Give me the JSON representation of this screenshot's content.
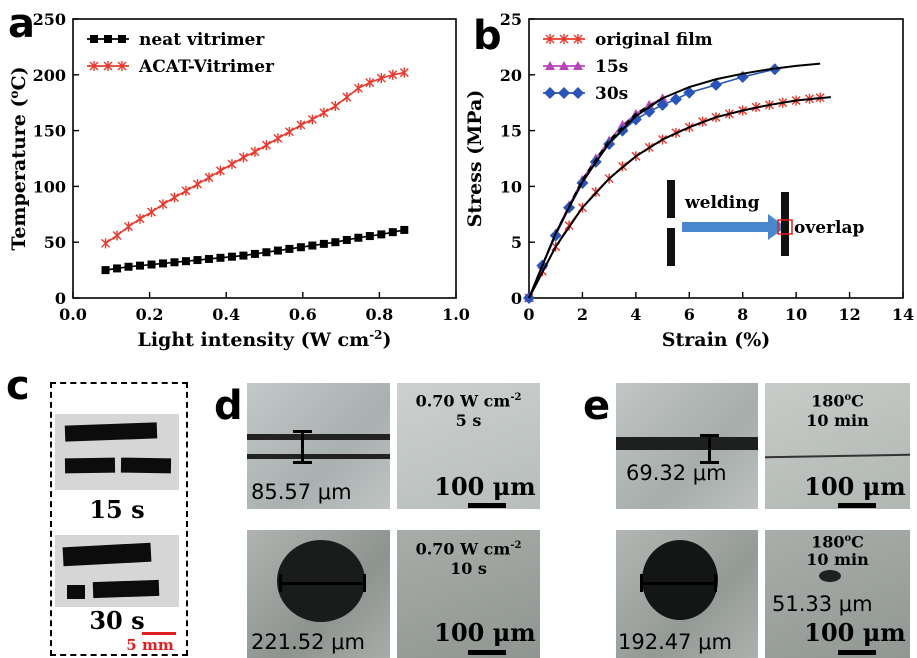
{
  "panels": {
    "a": "a",
    "b": "b",
    "c": "c",
    "d": "d",
    "e": "e"
  },
  "chart_data": [
    {
      "type": "line",
      "panel": "a",
      "xlabel": "Light intensity (W cm",
      "xlabel_sup": "-2",
      "xlabel_end": ")",
      "ylabel": "Temperature (",
      "ylabel_sup": "o",
      "ylabel_end": "C)",
      "xlim": [
        0.0,
        1.0
      ],
      "ylim": [
        0,
        250
      ],
      "xticks": [
        "0.0",
        "0.2",
        "0.4",
        "0.6",
        "0.8",
        "1.0"
      ],
      "yticks": [
        "0",
        "50",
        "100",
        "150",
        "200",
        "250"
      ],
      "legend": "top-left",
      "series": [
        {
          "name": "neat vitrimer",
          "color": "#000000",
          "marker": "square",
          "x": [
            0.085,
            0.115,
            0.145,
            0.175,
            0.205,
            0.235,
            0.265,
            0.295,
            0.325,
            0.355,
            0.385,
            0.415,
            0.445,
            0.475,
            0.505,
            0.535,
            0.565,
            0.595,
            0.625,
            0.655,
            0.685,
            0.715,
            0.745,
            0.775,
            0.805,
            0.835,
            0.865
          ],
          "y": [
            25,
            26.5,
            28,
            29,
            30,
            31,
            32,
            33,
            34,
            35,
            36,
            37,
            38,
            39.5,
            41,
            42.5,
            44,
            45.5,
            47,
            48.5,
            50,
            52,
            54,
            55.5,
            57,
            59,
            61
          ]
        },
        {
          "name": "ACAT-Vitrimer",
          "color": "#e8392e",
          "marker": "x",
          "x": [
            0.085,
            0.115,
            0.145,
            0.175,
            0.205,
            0.235,
            0.265,
            0.295,
            0.325,
            0.355,
            0.385,
            0.415,
            0.445,
            0.475,
            0.505,
            0.535,
            0.565,
            0.595,
            0.625,
            0.655,
            0.685,
            0.715,
            0.745,
            0.775,
            0.805,
            0.835,
            0.865
          ],
          "y": [
            49,
            56,
            64,
            71,
            77,
            84,
            90,
            96,
            102,
            108,
            114,
            120,
            126,
            131,
            137,
            143,
            149,
            155,
            160,
            166,
            172,
            180,
            188,
            193,
            197,
            200,
            202
          ]
        }
      ]
    },
    {
      "type": "line",
      "panel": "b",
      "xlabel": "Strain (%)",
      "ylabel": "Stress (MPa)",
      "xlim": [
        0,
        14
      ],
      "ylim": [
        0,
        25
      ],
      "xticks": [
        "0",
        "2",
        "4",
        "6",
        "8",
        "10",
        "12",
        "14"
      ],
      "yticks": [
        "0",
        "5",
        "10",
        "15",
        "20",
        "25"
      ],
      "legend": "top-left",
      "series": [
        {
          "name": "original film",
          "color": "#e8392e",
          "marker": "x",
          "x": [
            0,
            0.5,
            1,
            1.5,
            2,
            2.5,
            3,
            3.5,
            4,
            4.5,
            5,
            5.5,
            6,
            6.5,
            7,
            7.5,
            8,
            8.5,
            9,
            9.5,
            10,
            10.5,
            10.9
          ],
          "y": [
            0,
            2.4,
            4.6,
            6.5,
            8.1,
            9.5,
            10.7,
            11.8,
            12.7,
            13.5,
            14.2,
            14.8,
            15.3,
            15.8,
            16.2,
            16.5,
            16.8,
            17.1,
            17.3,
            17.5,
            17.7,
            17.85,
            17.95
          ]
        },
        {
          "name": "15s",
          "color": "#b845b8",
          "marker": "triangle",
          "x": [
            0,
            0.5,
            1,
            1.5,
            2,
            2.5,
            3,
            3.5,
            4,
            4.5,
            5
          ],
          "y": [
            0,
            3,
            5.8,
            8.3,
            10.6,
            12.5,
            14.1,
            15.5,
            16.5,
            17.3,
            17.9
          ]
        },
        {
          "name": "30s",
          "color": "#2a55b8",
          "marker": "diamond",
          "x": [
            0,
            0.5,
            1,
            1.5,
            2,
            2.5,
            3,
            3.5,
            4,
            4.5,
            5,
            5.5,
            6,
            7,
            8,
            9.2
          ],
          "y": [
            0,
            2.9,
            5.6,
            8.1,
            10.3,
            12.2,
            13.8,
            15,
            16,
            16.7,
            17.3,
            17.8,
            18.4,
            19.1,
            19.8,
            20.5
          ]
        }
      ],
      "fit_lines": [
        {
          "color": "#000000",
          "style": "solid",
          "x": [
            0,
            1,
            2,
            3,
            4,
            5,
            6,
            7,
            8,
            9,
            10,
            10.9
          ],
          "y": [
            0,
            5.8,
            10.4,
            13.9,
            16.3,
            17.9,
            18.9,
            19.6,
            20.1,
            20.5,
            20.8,
            21.0
          ]
        },
        {
          "color": "#000000",
          "style": "solid",
          "x": [
            0,
            1,
            2,
            3,
            4,
            5,
            6,
            7,
            8,
            9,
            10,
            11.3
          ],
          "y": [
            0,
            4.6,
            8.1,
            10.7,
            12.7,
            14.2,
            15.3,
            16.2,
            16.8,
            17.3,
            17.7,
            18.0
          ]
        },
        {
          "color": "#000000",
          "style": "dashed",
          "x": [
            0,
            1,
            2,
            3,
            4,
            5
          ],
          "y": [
            0,
            5.8,
            10.6,
            14.1,
            16.5,
            17.9
          ]
        }
      ],
      "inset": {
        "welding": "welding",
        "overlap": "overlap"
      }
    }
  ],
  "panel_c": {
    "label_15": "15 s",
    "label_30": "30 s",
    "scale": "5 mm"
  },
  "panel_d": {
    "top_measure": "85.57 μm",
    "top_cond_1": "0.70 W cm",
    "top_cond_sup": "-2",
    "top_cond_2": "5 s",
    "bottom_measure": "221.52 μm",
    "bottom_cond_1": "0.70 W cm",
    "bottom_cond_sup": "-2",
    "bottom_cond_2": "10 s",
    "scale_top": "100 μm",
    "scale_bottom": "100 μm"
  },
  "panel_e": {
    "top_measure": "69.32 μm",
    "top_cond_1": "180",
    "top_cond_sup": "o",
    "top_cond_c": "C",
    "top_cond_2": "10 min",
    "bottom_measure": "192.47 μm",
    "bottom_cond_1": "180",
    "bottom_cond_sup": "o",
    "bottom_cond_c": "C",
    "bottom_cond_2": "10 min",
    "bottom_after": "51.33 μm",
    "scale_top": "100 μm",
    "scale_bottom": "100 μm"
  }
}
